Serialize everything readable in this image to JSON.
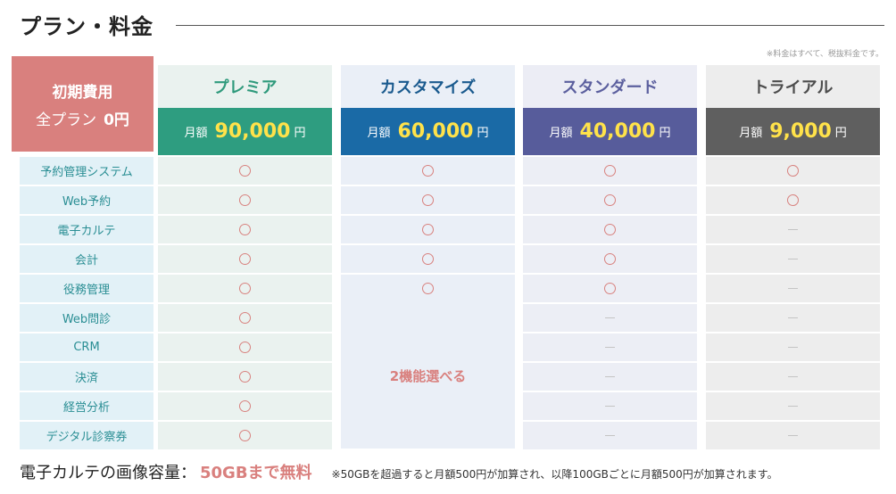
{
  "page": {
    "title": "プラン・料金",
    "tax_note": "※料金はすべて、税抜料金です。"
  },
  "initial": {
    "title": "初期費用",
    "label": "全プラン",
    "value": "0円"
  },
  "price_unit_label": "月額",
  "price_suffix": "円",
  "plans": [
    {
      "name": "プレミア",
      "amount": "90,000",
      "name_color": "#2f9a7c",
      "header_bg": "#eaf2ef",
      "price_bg": "#2e9d80",
      "cell_bg": "#eaf2ef"
    },
    {
      "name": "カスタマイズ",
      "amount": "60,000",
      "name_color": "#1a5a8e",
      "header_bg": "#eaeff7",
      "price_bg": "#1a6aa6",
      "cell_bg": "#eaeff7"
    },
    {
      "name": "スタンダード",
      "amount": "40,000",
      "name_color": "#5b5f9e",
      "header_bg": "#ecedf5",
      "price_bg": "#575c9b",
      "cell_bg": "#eceef5"
    },
    {
      "name": "トライアル",
      "amount": "9,000",
      "name_color": "#4d4d4d",
      "header_bg": "#ededed",
      "price_bg": "#5f5f5f",
      "cell_bg": "#ededed"
    }
  ],
  "features": [
    "予約管理システム",
    "Web予約",
    "電子カルテ",
    "会計",
    "役務管理",
    "Web問診",
    "CRM",
    "決済",
    "経営分析",
    "デジタル診察券"
  ],
  "availability": [
    [
      "circle",
      "circle",
      "circle",
      "circle"
    ],
    [
      "circle",
      "circle",
      "circle",
      "circle"
    ],
    [
      "circle",
      "circle",
      "circle",
      "dash"
    ],
    [
      "circle",
      "circle",
      "circle",
      "dash"
    ],
    [
      "circle",
      "circle",
      "circle",
      "dash"
    ],
    [
      "circle",
      "merged",
      "dash",
      "dash"
    ],
    [
      "circle",
      "merged",
      "dash",
      "dash"
    ],
    [
      "circle",
      "merged",
      "dash",
      "dash"
    ],
    [
      "circle",
      "merged",
      "dash",
      "dash"
    ],
    [
      "circle",
      "merged",
      "dash",
      "dash"
    ]
  ],
  "customize_choice_note": "2機能選べる",
  "footer": {
    "storage_label": "電子カルテの画像容量：",
    "storage_value": "50GBまで無料",
    "storage_note": "※50GBを超過すると月額500円が加算され、以降100GBごとに月額500円が加算されます。"
  },
  "colors": {
    "accent": "#d9807e",
    "feature_label_bg": "#e2f1f7",
    "feature_label_text": "#2a8e94",
    "price_amount": "#ffe24a"
  }
}
